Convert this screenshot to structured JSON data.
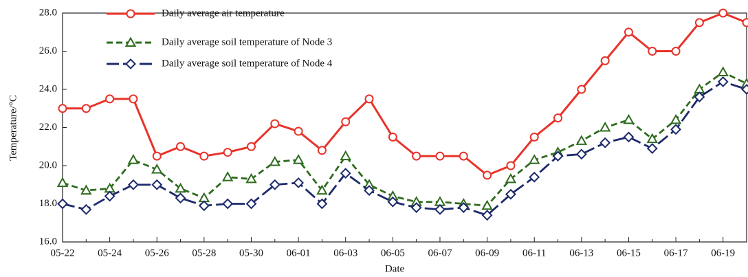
{
  "chart_data": {
    "type": "line",
    "x_label": "Date",
    "y_label": "Temperature/°C",
    "categories": [
      "05-22",
      null,
      "05-24",
      null,
      "05-26",
      null,
      "05-28",
      null,
      "05-30",
      null,
      "06-01",
      null,
      "06-03",
      null,
      "06-05",
      null,
      "06-07",
      null,
      "06-09",
      null,
      "06-11",
      null,
      "06-13",
      null,
      "06-15",
      null,
      "06-17",
      null,
      "06-19",
      null
    ],
    "series": [
      {
        "name": "Daily average air temperature",
        "color": "#e8332a",
        "marker": "circle",
        "dash": "solid",
        "values": [
          23.0,
          23.0,
          23.5,
          23.5,
          20.5,
          21.0,
          20.5,
          20.7,
          21.0,
          22.2,
          21.8,
          20.8,
          22.3,
          23.5,
          21.5,
          20.5,
          20.5,
          20.5,
          19.5,
          20.0,
          21.5,
          22.5,
          24.0,
          25.5,
          27.0,
          26.0,
          26.0,
          27.5,
          28.0,
          27.5
        ]
      },
      {
        "name": "Daily average soil temperature of Node 3",
        "color": "#2e6b1e",
        "marker": "triangle",
        "dash": "dashed",
        "values": [
          19.1,
          18.7,
          18.8,
          20.3,
          19.8,
          18.8,
          18.3,
          19.4,
          19.3,
          20.2,
          20.3,
          18.7,
          20.5,
          19.0,
          18.4,
          18.1,
          18.1,
          18.0,
          17.9,
          19.3,
          20.3,
          20.7,
          21.3,
          22.0,
          22.4,
          21.4,
          22.4,
          24.0,
          24.9,
          24.3
        ]
      },
      {
        "name": "Daily average soil temperature of Node 4",
        "color": "#1c2a6b",
        "marker": "diamond",
        "dash": "longdash",
        "values": [
          18.0,
          17.7,
          18.4,
          19.0,
          19.0,
          18.3,
          17.9,
          18.0,
          18.0,
          19.0,
          19.1,
          18.0,
          19.6,
          18.7,
          18.1,
          17.8,
          17.7,
          17.8,
          17.4,
          18.5,
          19.4,
          20.5,
          20.6,
          21.2,
          21.5,
          20.9,
          21.9,
          23.6,
          24.4,
          24.0
        ]
      }
    ],
    "ylim": [
      16,
      28
    ],
    "yticks": [
      {
        "value": 16,
        "label": "16.0"
      },
      {
        "value": 18,
        "label": "18.0"
      },
      {
        "value": 20,
        "label": "20.0"
      },
      {
        "value": 22,
        "label": "22.0"
      },
      {
        "value": 24,
        "label": "24.0"
      },
      {
        "value": 26,
        "label": "26.0"
      },
      {
        "value": 28,
        "label": "28.0"
      }
    ],
    "legend": "top-left"
  }
}
